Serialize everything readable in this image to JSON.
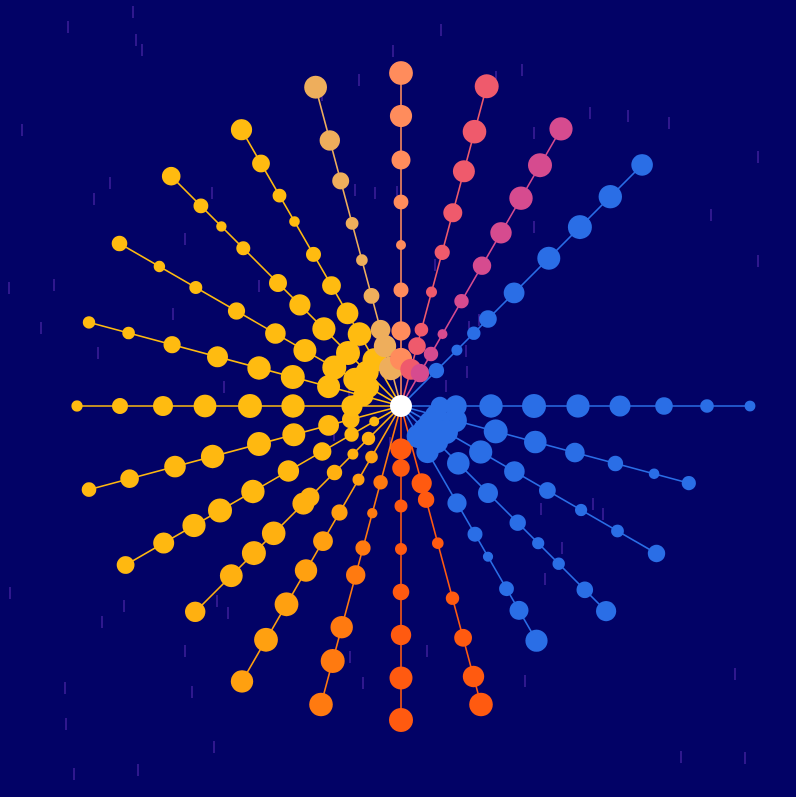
{
  "colors": {
    "background": "#020266",
    "center": "#ffffff",
    "rain": "#7a3fd0"
  },
  "rays": [
    {
      "angle": 0,
      "color": "#2a6ee6",
      "radii": [
        15,
        24,
        39,
        55,
        90,
        133,
        177,
        219,
        263,
        306,
        349
      ]
    },
    {
      "angle": 15,
      "color": "#2a6ee6",
      "radii": [
        12,
        23,
        36,
        56,
        98,
        139,
        180,
        222,
        262,
        298
      ]
    },
    {
      "angle": 30,
      "color": "#2a6ee6",
      "radii": [
        12,
        20,
        34,
        52,
        92,
        131,
        169,
        208,
        250,
        295
      ]
    },
    {
      "angle": 45,
      "color": "#2a6ee6",
      "radii": [
        14,
        24,
        34,
        50,
        81,
        123,
        165,
        194,
        223,
        260,
        290
      ]
    },
    {
      "angle": 60,
      "color": "#2a6ee6",
      "radii": [
        12,
        22,
        35,
        53,
        112,
        148,
        174,
        211,
        236,
        271
      ]
    },
    {
      "angle": 75,
      "color": "#ff5a10",
      "radii": [
        10,
        20,
        25,
        80,
        97,
        142,
        199,
        240,
        280,
        309
      ]
    },
    {
      "angle": 90,
      "color": "#ff5a10",
      "radii": [
        10,
        24,
        43,
        62,
        100,
        143,
        186,
        229,
        272,
        314
      ]
    },
    {
      "angle": 105,
      "color": "#ff7a10",
      "radii": [
        8,
        14,
        20,
        79,
        111,
        147,
        175,
        229,
        264,
        309
      ]
    },
    {
      "angle": 120,
      "color": "#ffa010",
      "radii": [
        8,
        15,
        26,
        59,
        85,
        123,
        156,
        190,
        229,
        270,
        318
      ]
    },
    {
      "angle": 135,
      "color": "#ffb010",
      "radii": [
        12,
        23,
        46,
        68,
        94,
        129,
        138,
        180,
        208,
        240,
        291
      ]
    },
    {
      "angle": 150,
      "color": "#ffb810",
      "radii": [
        12,
        18,
        31,
        57,
        91,
        130,
        171,
        209,
        239,
        274,
        318
      ]
    },
    {
      "angle": 165,
      "color": "#ffb810",
      "radii": [
        11,
        16,
        24,
        52,
        75,
        111,
        147,
        195,
        234,
        281,
        323
      ]
    },
    {
      "angle": 180,
      "color": "#ffbb10",
      "radii": [
        10,
        17,
        28,
        49,
        108,
        151,
        196,
        238,
        281,
        324
      ]
    },
    {
      "angle": 195,
      "color": "#ffbb10",
      "radii": [
        11,
        19,
        39,
        75,
        112,
        147,
        190,
        237,
        282,
        323
      ]
    },
    {
      "angle": 210,
      "color": "#ffbb10",
      "radii": [
        12,
        23,
        38,
        53,
        77,
        111,
        145,
        190,
        237,
        279,
        325
      ]
    },
    {
      "angle": 225,
      "color": "#ffbb10",
      "radii": [
        12,
        25,
        48,
        75,
        109,
        143,
        174,
        223,
        254,
        283,
        325
      ]
    },
    {
      "angle": 240,
      "color": "#ffbb10",
      "radii": [
        12,
        23,
        53,
        83,
        107,
        139,
        175,
        213,
        243,
        280,
        319
      ]
    },
    {
      "angle": 255,
      "color": "#eeae5c",
      "radii": [
        12,
        21,
        39,
        62,
        79,
        114,
        151,
        189,
        233,
        275,
        330
      ]
    },
    {
      "angle": 270,
      "color": "#ff8c5c",
      "radii": [
        12,
        21,
        47,
        75,
        116,
        161,
        204,
        246,
        290,
        333
      ]
    },
    {
      "angle": 285,
      "color": "#ef5a6c",
      "radii": [
        12,
        21,
        38,
        62,
        79,
        118,
        159,
        200,
        243,
        284,
        331
      ]
    },
    {
      "angle": 300,
      "color": "#d64b8f",
      "radii": [
        12,
        20,
        38,
        60,
        83,
        121,
        162,
        200,
        240,
        278,
        320
      ]
    },
    {
      "angle": 315,
      "color": "#2a6ee6",
      "radii": [
        12,
        27,
        50,
        79,
        103,
        123,
        160,
        209,
        253,
        296,
        341
      ]
    }
  ]
}
